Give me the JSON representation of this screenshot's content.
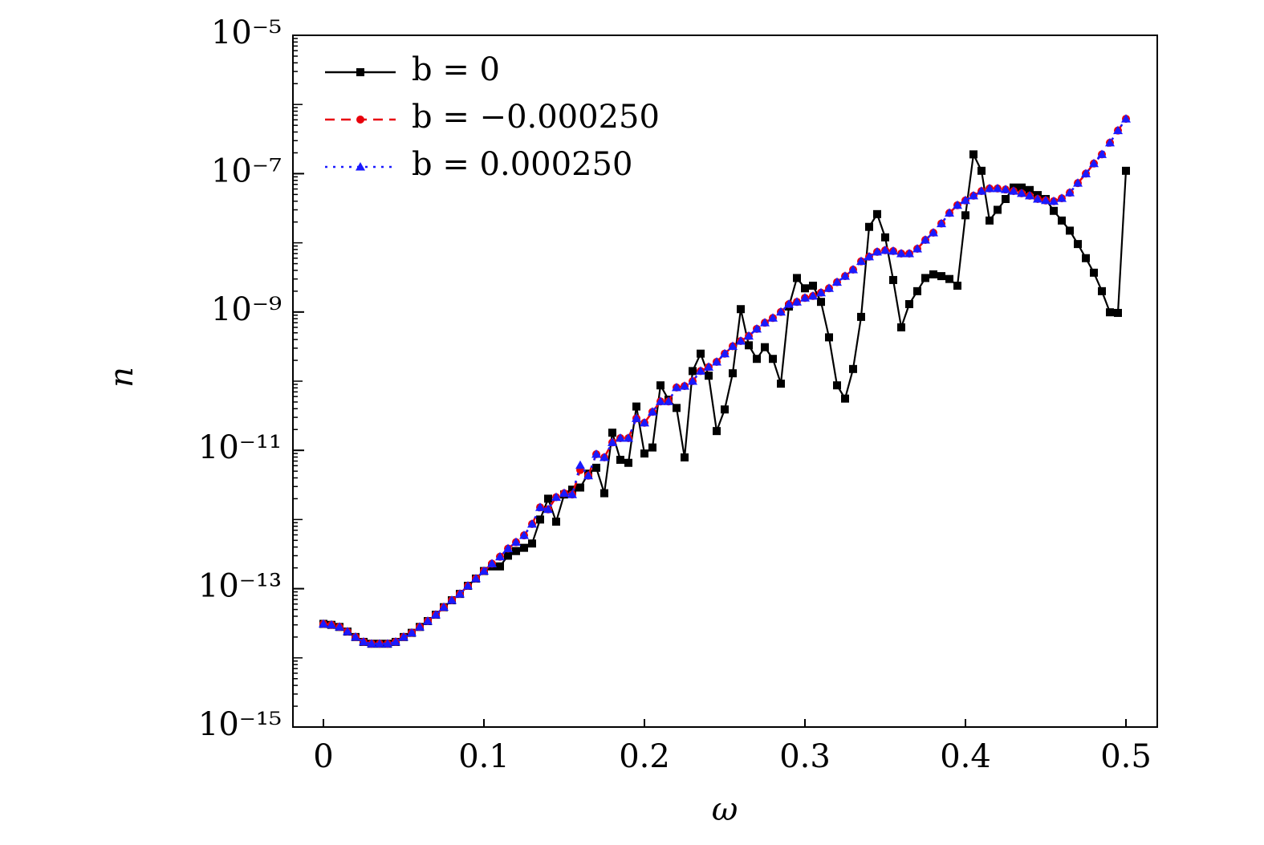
{
  "chart_data": {
    "type": "line",
    "xlabel": "ω",
    "ylabel": "n",
    "yscale": "log",
    "legend": "upper left",
    "xlim": [
      -0.019,
      0.5195
    ],
    "xticks": [
      0,
      0.1,
      0.2,
      0.3,
      0.4,
      0.5
    ],
    "ylim": [
      1e-15,
      1e-05
    ],
    "yticks": [
      {
        "value": 1e-05,
        "label": "10⁻⁵"
      },
      {
        "value": 1e-07,
        "label": "10⁻⁷"
      },
      {
        "value": 1e-09,
        "label": "10⁻⁹"
      },
      {
        "value": 1e-11,
        "label": "10⁻¹¹"
      },
      {
        "value": 1e-13,
        "label": "10⁻¹³"
      },
      {
        "value": 1e-15,
        "label": "10⁻¹⁵"
      }
    ],
    "x": [
      0,
      0.005,
      0.01,
      0.015,
      0.02,
      0.025,
      0.03,
      0.035,
      0.04,
      0.045,
      0.05,
      0.055,
      0.06,
      0.065,
      0.07,
      0.075,
      0.08,
      0.085,
      0.09,
      0.095,
      0.1,
      0.105,
      0.11,
      0.115,
      0.12,
      0.125,
      0.13,
      0.135,
      0.14,
      0.145,
      0.15,
      0.155,
      0.16,
      0.165,
      0.17,
      0.175,
      0.18,
      0.185,
      0.19,
      0.195,
      0.2,
      0.205,
      0.21,
      0.215,
      0.22,
      0.225,
      0.23,
      0.235,
      0.24,
      0.245,
      0.25,
      0.255,
      0.26,
      0.265,
      0.27,
      0.275,
      0.28,
      0.285,
      0.29,
      0.295,
      0.3,
      0.305,
      0.31,
      0.315,
      0.32,
      0.325,
      0.33,
      0.335,
      0.34,
      0.345,
      0.35,
      0.355,
      0.36,
      0.365,
      0.37,
      0.375,
      0.38,
      0.385,
      0.39,
      0.395,
      0.4,
      0.405,
      0.41,
      0.415,
      0.42,
      0.425,
      0.43,
      0.435,
      0.44,
      0.445,
      0.45,
      0.455,
      0.46,
      0.465,
      0.47,
      0.475,
      0.48,
      0.485,
      0.49,
      0.495,
      0.5
    ],
    "series": [
      {
        "name": "b = 0",
        "color": "#000000",
        "linestyle": "solid",
        "marker": "square",
        "values": [
          3.1e-14,
          3e-14,
          2.8e-14,
          2.4e-14,
          2e-14,
          1.7e-14,
          1.6e-14,
          1.6e-14,
          1.6e-14,
          1.7e-14,
          2e-14,
          2.3e-14,
          2.8e-14,
          3.4e-14,
          4.2e-14,
          5.4e-14,
          6.8e-14,
          8.4e-14,
          1.1e-13,
          1.4e-13,
          1.8e-13,
          2.1e-13,
          2.1e-13,
          3e-13,
          3.5e-13,
          3.9e-13,
          4.5e-13,
          1e-12,
          2e-12,
          9.3e-13,
          2.3e-12,
          2.7e-12,
          2.9e-12,
          4.6e-12,
          5.6e-12,
          2.4e-12,
          1.8e-11,
          7.3e-12,
          6.6e-12,
          4.3e-11,
          9e-12,
          1.1e-11,
          8.7e-11,
          5.4e-11,
          4.1e-11,
          7.9e-12,
          1.4e-10,
          2.5e-10,
          1.2e-10,
          1.9e-11,
          3.9e-11,
          1.3e-10,
          1.1e-09,
          3.3e-10,
          2.1e-10,
          3.1e-10,
          2.1e-10,
          9.2e-11,
          1.2e-09,
          3.1e-09,
          2.2e-09,
          2.4e-09,
          1.4e-09,
          4.3e-10,
          8.7e-11,
          5.6e-11,
          1.5e-10,
          8.5e-10,
          1.7e-08,
          2.6e-08,
          1.2e-08,
          2.9e-09,
          6e-10,
          1.3e-09,
          2e-09,
          3.1e-09,
          3.5e-09,
          3.3e-09,
          3e-09,
          2.4e-09,
          2.5e-08,
          1.9e-07,
          1.1e-07,
          2.1e-08,
          3e-08,
          4.3e-08,
          6.3e-08,
          6.3e-08,
          5.8e-08,
          4.9e-08,
          4.3e-08,
          2.9e-08,
          2.1e-08,
          1.5e-08,
          9.6e-09,
          6e-09,
          3.7e-09,
          2e-09,
          9.9e-10,
          9.7e-10,
          1.1e-07
        ]
      },
      {
        "name": "b = −0.000250",
        "color": "#e8000b",
        "linestyle": "dashed",
        "marker": "circle",
        "values": [
          3.1e-14,
          3e-14,
          2.8e-14,
          2.4e-14,
          2e-14,
          1.7e-14,
          1.6e-14,
          1.6e-14,
          1.6e-14,
          1.7e-14,
          2e-14,
          2.3e-14,
          2.8e-14,
          3.4e-14,
          4.2e-14,
          5.4e-14,
          6.8e-14,
          8.4e-14,
          1.1e-13,
          1.4e-13,
          1.8e-13,
          2.3e-13,
          2.9e-13,
          3.8e-13,
          4.7e-13,
          5.9e-13,
          8.6e-13,
          1.5e-12,
          1.4e-12,
          2.1e-12,
          2.4e-12,
          2.3e-12,
          5.2e-12,
          4.3e-12,
          8.8e-12,
          7.9e-12,
          1.3e-11,
          1.5e-11,
          1.5e-11,
          2.9e-11,
          2.5e-11,
          3.6e-11,
          5.1e-11,
          5.1e-11,
          8.1e-11,
          8.5e-11,
          1e-10,
          1.4e-10,
          1.6e-10,
          1.9e-10,
          2.5e-10,
          3.2e-10,
          3.8e-10,
          4.5e-10,
          5.7e-10,
          7e-10,
          8.2e-10,
          1e-09,
          1.3e-09,
          1.4e-09,
          1.6e-09,
          1.7e-09,
          1.9e-09,
          2.2e-09,
          2.7e-09,
          3.3e-09,
          4.1e-09,
          5.4e-09,
          6.3e-09,
          7.4e-09,
          7.8e-09,
          7.6e-09,
          7e-09,
          7e-09,
          8.2e-09,
          1.1e-08,
          1.4e-08,
          1.9e-08,
          2.7e-08,
          3.5e-08,
          4.1e-08,
          4.8e-08,
          5.6e-08,
          6.1e-08,
          6.1e-08,
          5.9e-08,
          5.6e-08,
          5.2e-08,
          4.8e-08,
          4.3e-08,
          4.1e-08,
          4e-08,
          4.4e-08,
          5.3e-08,
          7.3e-08,
          1e-07,
          1.4e-07,
          1.9e-07,
          2.8e-07,
          4.2e-07,
          6.2e-07
        ]
      },
      {
        "name": "b = 0.000250",
        "color": "#1a1aff",
        "linestyle": "dotted",
        "marker": "triangle",
        "values": [
          3.1e-14,
          3e-14,
          2.8e-14,
          2.4e-14,
          2e-14,
          1.7e-14,
          1.6e-14,
          1.6e-14,
          1.6e-14,
          1.7e-14,
          2e-14,
          2.3e-14,
          2.8e-14,
          3.4e-14,
          4.2e-14,
          5.4e-14,
          6.8e-14,
          8.4e-14,
          1.1e-13,
          1.4e-13,
          1.8e-13,
          2.3e-13,
          2.9e-13,
          3.8e-13,
          4.7e-13,
          5.9e-13,
          8.6e-13,
          1.5e-12,
          1.4e-12,
          2.1e-12,
          2.4e-12,
          2.3e-12,
          6.1e-12,
          4.3e-12,
          8.8e-12,
          7.9e-12,
          1.3e-11,
          1.5e-11,
          1.5e-11,
          2.9e-11,
          2.5e-11,
          3.6e-11,
          5.1e-11,
          5.1e-11,
          8.1e-11,
          8.5e-11,
          1e-10,
          1.4e-10,
          1.6e-10,
          1.9e-10,
          2.5e-10,
          3.2e-10,
          3.8e-10,
          4.5e-10,
          5.7e-10,
          7e-10,
          8.2e-10,
          1e-09,
          1.3e-09,
          1.4e-09,
          1.6e-09,
          1.7e-09,
          1.9e-09,
          2.2e-09,
          2.7e-09,
          3.3e-09,
          4.1e-09,
          5.4e-09,
          6.3e-09,
          7.4e-09,
          7.8e-09,
          7.6e-09,
          7e-09,
          7e-09,
          8.2e-09,
          1.1e-08,
          1.4e-08,
          1.9e-08,
          2.7e-08,
          3.5e-08,
          4.1e-08,
          4.8e-08,
          5.6e-08,
          6.1e-08,
          6.1e-08,
          5.9e-08,
          5.6e-08,
          5.2e-08,
          4.8e-08,
          4.3e-08,
          4.1e-08,
          4e-08,
          4.4e-08,
          5.3e-08,
          7.3e-08,
          1e-07,
          1.4e-07,
          1.9e-07,
          2.8e-07,
          4.2e-07,
          6.2e-07
        ]
      }
    ]
  }
}
